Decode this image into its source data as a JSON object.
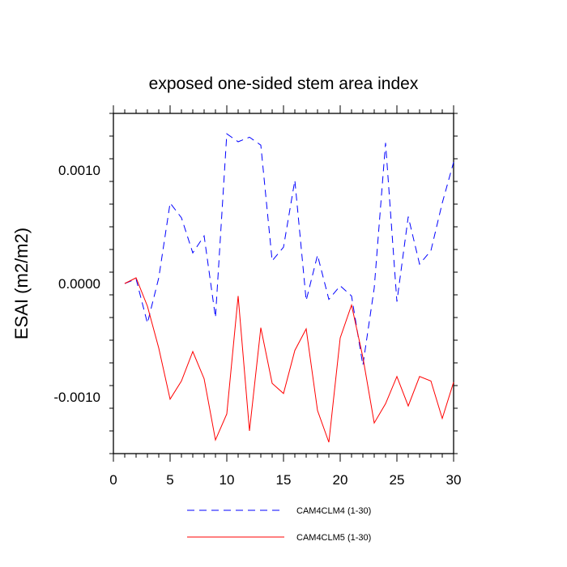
{
  "chart_data": {
    "type": "line",
    "title": "exposed one-sided stem area index",
    "xlabel": "",
    "ylabel": "ESAI  (m2/m2)",
    "xlim": [
      0,
      30
    ],
    "ylim": [
      -0.0015,
      0.0015
    ],
    "xticks": [
      0,
      5,
      10,
      15,
      20,
      25,
      30
    ],
    "xtick_labels": [
      "0",
      "5",
      "10",
      "15",
      "20",
      "25",
      "30"
    ],
    "yticks": [
      0.001,
      0.0,
      -0.001
    ],
    "ytick_labels": [
      "0.0010",
      "0.0000",
      "-0.0010"
    ],
    "grid": false,
    "legend_position": "bottom",
    "x": [
      1,
      2,
      3,
      4,
      5,
      6,
      7,
      8,
      9,
      10,
      11,
      12,
      13,
      14,
      15,
      16,
      17,
      18,
      19,
      20,
      21,
      22,
      23,
      24,
      25,
      26,
      27,
      28,
      29,
      30
    ],
    "series": [
      {
        "name": "CAM4CLM4 (1-30)",
        "color": "#0000ff",
        "dash": "dashed",
        "values": [
          0.0,
          4e-05,
          -0.00035,
          5e-05,
          0.00071,
          0.00058,
          0.00027,
          0.00042,
          -0.0003,
          0.00132,
          0.00125,
          0.00129,
          0.00122,
          0.0002,
          0.00032,
          0.00091,
          -0.00015,
          0.00025,
          -0.00014,
          -2e-05,
          -0.00011,
          -0.00072,
          -4e-05,
          0.00124,
          -0.00016,
          0.00059,
          0.00017,
          0.00029,
          0.00071,
          0.00107
        ]
      },
      {
        "name": "CAM4CLM5 (1-30)",
        "color": "#ff0000",
        "dash": "solid",
        "values": [
          0.0,
          5e-05,
          -0.0002,
          -0.00057,
          -0.00102,
          -0.00086,
          -0.0006,
          -0.00084,
          -0.00138,
          -0.00115,
          -0.00011,
          -0.0013,
          -0.00039,
          -0.00088,
          -0.00097,
          -0.00059,
          -0.0004,
          -0.00112,
          -0.0014,
          -0.00048,
          -0.00019,
          -0.00065,
          -0.00123,
          -0.00106,
          -0.00082,
          -0.00108,
          -0.00082,
          -0.00086,
          -0.00119,
          -0.00087
        ]
      }
    ]
  }
}
